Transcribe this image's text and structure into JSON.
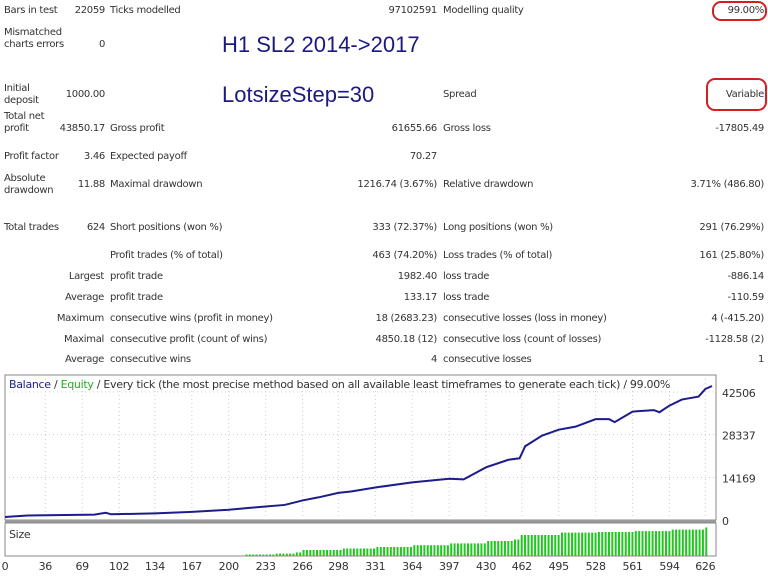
{
  "overlay": {
    "line1": "H1 SL2 2014->2017",
    "line2": "LotsizeStep=30"
  },
  "rows": [
    {
      "l1": "Bars in test",
      "v1": "22059",
      "l2": "Ticks modelled",
      "v2": "97102591",
      "l3": "Modelling quality",
      "v3": "99.00%"
    },
    {
      "l1": "Mismatched charts errors",
      "v1": "0"
    },
    {
      "l1": "Initial deposit",
      "v1": "1000.00",
      "l3": "Spread",
      "v3": "Variable"
    },
    {
      "l1": "Total net profit",
      "v1": "43850.17",
      "l2": "Gross profit",
      "v2": "61655.66",
      "l3": "Gross loss",
      "v3": "-17805.49"
    },
    {
      "l1": "Profit factor",
      "v1": "3.46",
      "l2": "Expected payoff",
      "v2": "70.27"
    },
    {
      "l1": "Absolute drawdown",
      "v1": "11.88",
      "l2": "Maximal drawdown",
      "v2": "1216.74 (3.67%)",
      "l3": "Relative drawdown",
      "v3": "3.71% (486.80)"
    },
    {
      "l1": "Total trades",
      "v1": "624",
      "l2": "Short positions (won %)",
      "v2": "333 (72.37%)",
      "l3": "Long positions (won %)",
      "v3": "291 (76.29%)"
    },
    {
      "l2": "Profit trades (% of total)",
      "v2": "463 (74.20%)",
      "l3": "Loss trades (% of total)",
      "v3": "161 (25.80%)"
    },
    {
      "l1": "Largest",
      "l2": "profit trade",
      "v2": "1982.40",
      "l3": "loss trade",
      "v3": "-886.14"
    },
    {
      "l1": "Average",
      "l2": "profit trade",
      "v2": "133.17",
      "l3": "loss trade",
      "v3": "-110.59"
    },
    {
      "l1": "Maximum",
      "l2": "consecutive wins (profit in money)",
      "v2": "18 (2683.23)",
      "l3": "consecutive losses (loss in money)",
      "v3": "4 (-415.20)"
    },
    {
      "l1": "Maximal",
      "l2": "consecutive profit (count of wins)",
      "v2": "4850.18 (12)",
      "l3": "consecutive loss (count of losses)",
      "v3": "-1128.58 (2)"
    },
    {
      "l1": "Average",
      "l2": "consecutive wins",
      "v2": "4",
      "l3": "consecutive losses",
      "v3": "1"
    }
  ],
  "chart_data": {
    "type": "line",
    "legend": {
      "balance": "Balance",
      "sep1": " / ",
      "equity": "Equity",
      "rest": " / Every tick (the most precise method based on all available least timeframes to generate each tick) / 99.00%"
    },
    "colors": {
      "balance": "#1c1c8c",
      "equity": "#20b020",
      "size": "#1fc81f"
    },
    "yticks": [
      0,
      14169,
      28337,
      42506
    ],
    "ylim": [
      0,
      45500
    ],
    "xticks": [
      0,
      36,
      69,
      102,
      134,
      167,
      200,
      233,
      266,
      298,
      331,
      364,
      397,
      430,
      462,
      495,
      528,
      561,
      594,
      626
    ],
    "xlim": [
      0,
      632
    ],
    "size_label": "Size",
    "balance": [
      [
        0,
        1000
      ],
      [
        20,
        1500
      ],
      [
        80,
        1800
      ],
      [
        90,
        2400
      ],
      [
        95,
        1900
      ],
      [
        134,
        2200
      ],
      [
        167,
        2700
      ],
      [
        200,
        3400
      ],
      [
        233,
        4500
      ],
      [
        250,
        5000
      ],
      [
        266,
        6500
      ],
      [
        280,
        7500
      ],
      [
        298,
        9000
      ],
      [
        310,
        9500
      ],
      [
        331,
        10800
      ],
      [
        364,
        12500
      ],
      [
        397,
        13700
      ],
      [
        410,
        13500
      ],
      [
        430,
        17500
      ],
      [
        450,
        20000
      ],
      [
        460,
        20500
      ],
      [
        465,
        24500
      ],
      [
        480,
        28000
      ],
      [
        495,
        30000
      ],
      [
        510,
        31000
      ],
      [
        528,
        33500
      ],
      [
        540,
        33500
      ],
      [
        545,
        32500
      ],
      [
        561,
        36000
      ],
      [
        580,
        36500
      ],
      [
        585,
        35800
      ],
      [
        594,
        38000
      ],
      [
        605,
        40000
      ],
      [
        620,
        41000
      ],
      [
        626,
        43500
      ],
      [
        632,
        44500
      ]
    ],
    "size_steps": [
      [
        215,
        0.05
      ],
      [
        240,
        0.08
      ],
      [
        260,
        0.12
      ],
      [
        266,
        0.2
      ],
      [
        300,
        0.25
      ],
      [
        331,
        0.3
      ],
      [
        364,
        0.36
      ],
      [
        397,
        0.42
      ],
      [
        430,
        0.5
      ],
      [
        455,
        0.55
      ],
      [
        460,
        0.7
      ],
      [
        495,
        0.78
      ],
      [
        528,
        0.8
      ],
      [
        561,
        0.83
      ],
      [
        594,
        0.88
      ],
      [
        625,
        0.95
      ]
    ]
  }
}
